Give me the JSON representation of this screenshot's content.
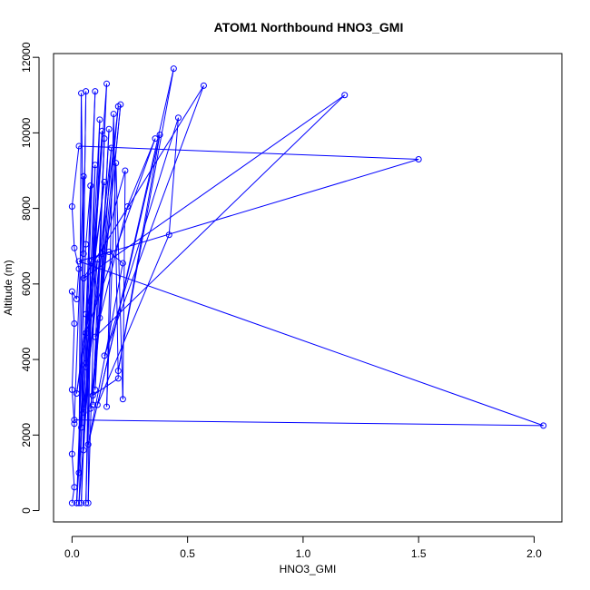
{
  "chart_data": {
    "type": "line",
    "title": "ATOM1 Northbound HNO3_GMI",
    "xlabel": "HNO3_GMI",
    "ylabel": "Altitude (m)",
    "xlim": [
      -0.08,
      2.12
    ],
    "ylim": [
      -300,
      12100
    ],
    "x_ticks": [
      0.0,
      0.5,
      1.0,
      1.5,
      2.0
    ],
    "x_tick_labels": [
      "0.0",
      "0.5",
      "1.0",
      "1.5",
      "2.0"
    ],
    "y_ticks": [
      0,
      2000,
      4000,
      6000,
      8000,
      10000,
      12000
    ],
    "y_tick_labels": [
      "0",
      "2000",
      "4000",
      "6000",
      "8000",
      "10000",
      "12000"
    ],
    "grid": false,
    "markers": "open-circle",
    "series": [
      {
        "color": "#0000ff",
        "points": [
          [
            0.0,
            200
          ],
          [
            0.01,
            620
          ],
          [
            0.0,
            1500
          ],
          [
            0.01,
            2300
          ],
          [
            0.0,
            3200
          ],
          [
            0.01,
            4950
          ],
          [
            0.0,
            5800
          ],
          [
            0.02,
            5600
          ],
          [
            0.03,
            6400
          ],
          [
            0.01,
            6950
          ],
          [
            0.0,
            8050
          ],
          [
            0.03,
            9650
          ],
          [
            1.5,
            9300
          ],
          [
            0.03,
            6600
          ],
          [
            2.04,
            2250
          ],
          [
            0.01,
            2400
          ],
          [
            0.05,
            8850
          ],
          [
            0.03,
            1000
          ],
          [
            0.04,
            11050
          ],
          [
            0.05,
            6800
          ],
          [
            0.06,
            11100
          ],
          [
            0.04,
            2200
          ],
          [
            0.1,
            11100
          ],
          [
            0.06,
            3900
          ],
          [
            0.02,
            200
          ],
          [
            0.06,
            7050
          ],
          [
            0.08,
            8600
          ],
          [
            0.04,
            200
          ],
          [
            0.1,
            9150
          ],
          [
            0.06,
            200
          ],
          [
            0.08,
            6600
          ],
          [
            0.07,
            200
          ],
          [
            0.12,
            10350
          ],
          [
            0.05,
            1600
          ],
          [
            0.13,
            10050
          ],
          [
            0.06,
            3800
          ],
          [
            0.15,
            11300
          ],
          [
            0.09,
            2800
          ],
          [
            0.14,
            9850
          ],
          [
            0.1,
            3200
          ],
          [
            0.16,
            10100
          ],
          [
            0.12,
            5100
          ],
          [
            0.17,
            9600
          ],
          [
            0.05,
            2600
          ],
          [
            0.2,
            10700
          ],
          [
            0.08,
            2700
          ],
          [
            0.21,
            10750
          ],
          [
            0.09,
            3050
          ],
          [
            0.2,
            3500
          ],
          [
            0.18,
            10500
          ],
          [
            0.15,
            2750
          ],
          [
            0.19,
            9200
          ],
          [
            0.22,
            2950
          ],
          [
            0.23,
            9000
          ],
          [
            0.13,
            6800
          ],
          [
            0.16,
            6850
          ],
          [
            0.22,
            6550
          ],
          [
            0.07,
            1750
          ],
          [
            0.38,
            9950
          ],
          [
            0.2,
            3700
          ],
          [
            0.44,
            11700
          ],
          [
            0.11,
            2800
          ],
          [
            0.42,
            7300
          ],
          [
            0.46,
            10400
          ],
          [
            0.14,
            4100
          ],
          [
            0.57,
            11250
          ],
          [
            0.05,
            6150
          ],
          [
            1.18,
            11000
          ],
          [
            0.1,
            4600
          ],
          [
            0.24,
            8050
          ],
          [
            0.36,
            9850
          ],
          [
            0.06,
            4700
          ],
          [
            0.14,
            8700
          ],
          [
            0.02,
            3100
          ],
          [
            0.11,
            6650
          ],
          [
            0.03,
            200
          ],
          [
            0.06,
            5200
          ],
          [
            0.02,
            200
          ]
        ]
      }
    ]
  }
}
